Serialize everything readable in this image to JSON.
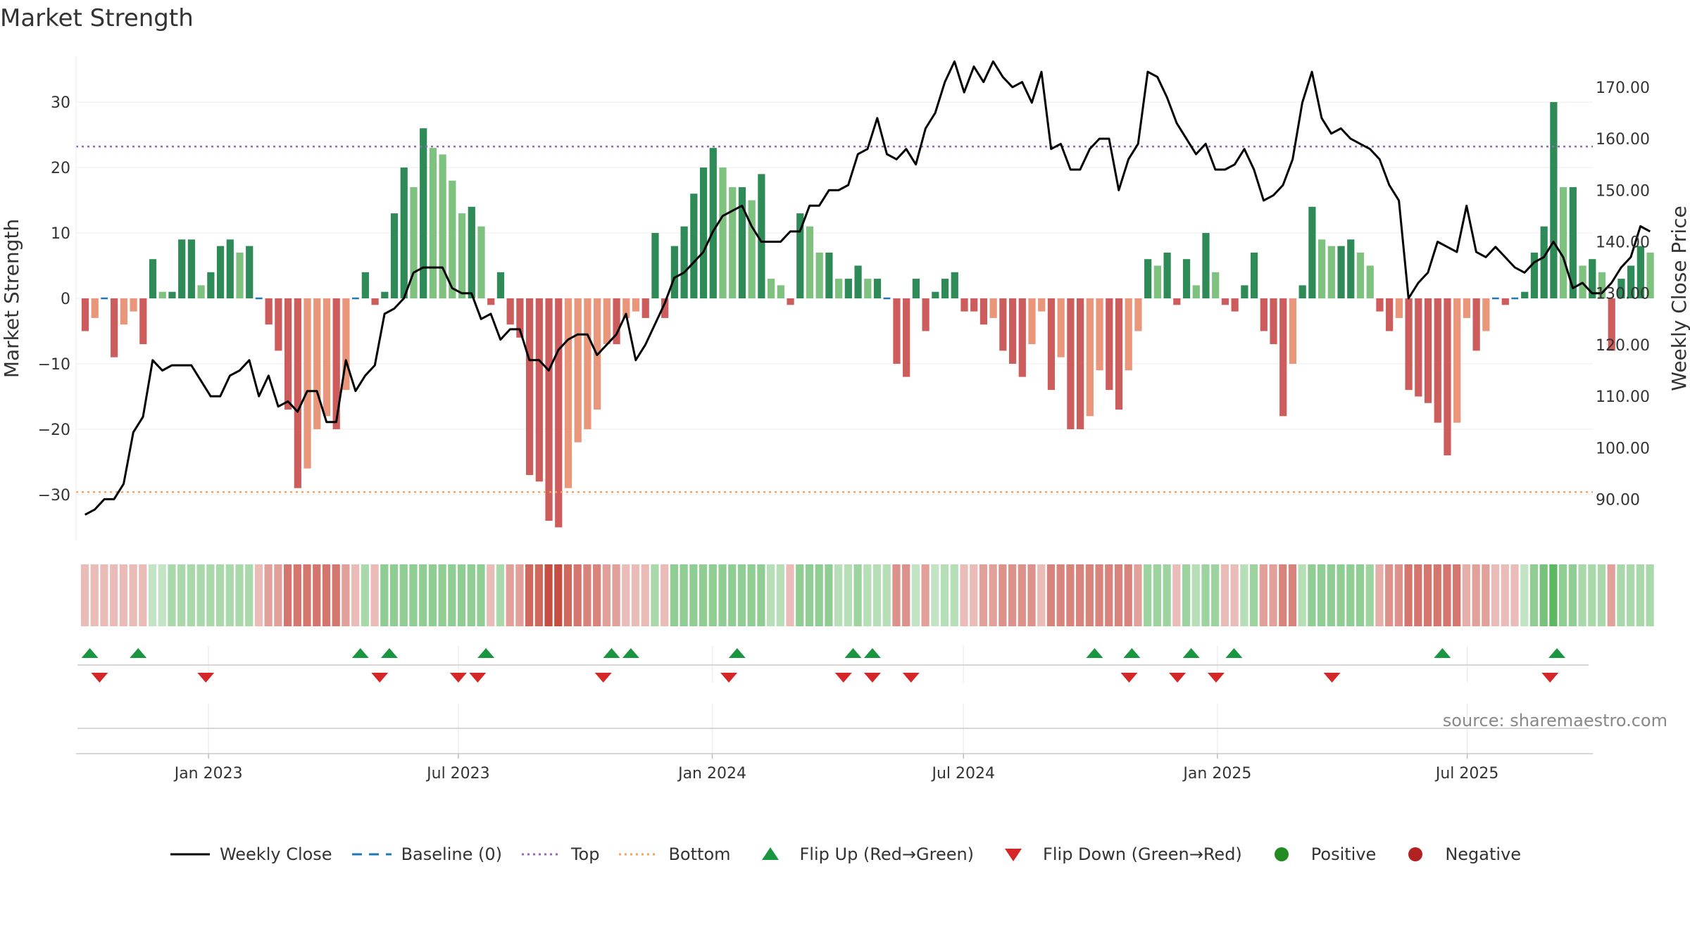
{
  "title": "Market Strength",
  "source": "source: sharemaestro.com",
  "legend": {
    "weekly_close": "Weekly Close",
    "baseline": "Baseline (0)",
    "top": "Top",
    "bottom": "Bottom",
    "flip_up": "Flip Up (Red→Green)",
    "flip_down": "Flip Down (Green→Red)",
    "positive": "Positive",
    "negative": "Negative"
  },
  "colors": {
    "green_dark": "#2e8b57",
    "green_light": "#7fc17f",
    "red_dark": "#cd5c5c",
    "red_light": "#e9967a",
    "top_line": "#9467bd",
    "bottom_line": "#f4a261",
    "baseline": "#1f77b4",
    "flip_up": "#1a9641",
    "flip_down": "#d62728",
    "positive": "#228b22",
    "negative": "#b22222"
  },
  "chart_data": {
    "type": "bar",
    "ylabel": "Market Strength",
    "y2label": "Weekly Close Price",
    "ylim": [
      -37,
      37
    ],
    "y2lim": [
      82,
      176
    ],
    "yticks": [
      -30,
      -20,
      -10,
      0,
      10,
      20,
      30
    ],
    "ytick_labels": [
      "−30",
      "−20",
      "−10",
      "0",
      "10",
      "20",
      "30"
    ],
    "y2ticks": [
      90,
      100,
      110,
      120,
      130,
      140,
      150,
      160,
      170
    ],
    "y2tick_labels": [
      "90.00",
      "100.00",
      "110.00",
      "120.00",
      "130.00",
      "140.00",
      "150.00",
      "160.00",
      "170.00"
    ],
    "top_level": 23.2,
    "bottom_level": -29.6,
    "x_range": [
      "2022-09-27",
      "2025-09-30"
    ],
    "xtick_dates": [
      "2023-01-01",
      "2023-07-01",
      "2024-01-01",
      "2024-07-01",
      "2025-01-01",
      "2025-07-01"
    ],
    "xtick_labels": [
      "Jan 2023",
      "Jul 2023",
      "Jan 2024",
      "Jul 2024",
      "Jan 2025",
      "Jul 2025"
    ],
    "start_date": "2022-09-30",
    "strength": [
      -5,
      -3,
      0,
      -9,
      -4,
      -2,
      -7,
      6,
      1,
      1,
      9,
      9,
      2,
      4,
      8,
      9,
      7,
      8,
      0,
      -4,
      -8,
      -17,
      -29,
      -26,
      -20,
      -18,
      -20,
      -14,
      0,
      4,
      -1,
      1,
      13,
      20,
      17,
      26,
      23,
      22,
      18,
      13,
      14,
      11,
      -1,
      4,
      -4,
      -6,
      -27,
      -28,
      -34,
      -35,
      -29,
      -22,
      -20,
      -17,
      -7,
      -7,
      -3,
      -2,
      -3,
      10,
      -3,
      8,
      11,
      16,
      20,
      23,
      20,
      17,
      17,
      15,
      19,
      3,
      2,
      -1,
      13,
      11,
      7,
      7,
      3,
      3,
      5,
      3,
      3,
      0,
      -10,
      -12,
      3,
      -5,
      1,
      3,
      4,
      -2,
      -2,
      -4,
      -3,
      -8,
      -10,
      -12,
      -7,
      -2,
      -14,
      -9,
      -20,
      -20,
      -18,
      -11,
      -14,
      -17,
      -11,
      -5,
      6,
      5,
      7,
      -1,
      6,
      2,
      10,
      4,
      -1,
      -2,
      2,
      7,
      -5,
      -7,
      -18,
      -10,
      2,
      14,
      9,
      8,
      8,
      9,
      7,
      5,
      -2,
      -5,
      -3,
      -14,
      -15,
      -16,
      -19,
      -24,
      -19,
      -3,
      -8,
      -5,
      0,
      -1,
      0,
      1,
      7,
      11,
      30,
      17,
      17,
      5,
      6,
      4,
      -8,
      3,
      5,
      8,
      7
    ],
    "close": [
      87,
      88,
      90,
      90,
      93,
      103,
      106,
      117,
      115,
      116,
      116,
      116,
      113,
      110,
      110,
      114,
      115,
      117,
      110,
      114,
      108,
      109,
      107,
      111,
      111,
      105,
      105,
      117,
      111,
      114,
      116,
      126,
      127,
      129,
      134,
      135,
      135,
      135,
      131,
      130,
      130,
      125,
      126,
      121,
      123,
      123,
      117,
      117,
      115,
      119,
      121,
      122,
      122,
      118,
      120,
      122,
      126,
      117,
      120,
      124,
      128,
      133,
      134,
      136,
      138,
      142,
      145,
      146,
      147,
      143,
      140,
      140,
      140,
      142,
      142,
      147,
      147,
      150,
      150,
      151,
      157,
      158,
      164,
      157,
      156,
      158,
      155,
      162,
      165,
      171,
      175,
      169,
      174,
      171,
      175,
      172,
      170,
      171,
      167,
      173,
      158,
      159,
      154,
      154,
      158,
      160,
      160,
      150,
      156,
      159,
      173,
      172,
      168,
      163,
      160,
      157,
      159,
      154,
      154,
      155,
      158,
      154,
      148,
      149,
      151,
      156,
      167,
      173,
      164,
      161,
      162,
      160,
      159,
      158,
      156,
      151,
      148,
      129,
      132,
      134,
      140,
      139,
      138,
      147,
      138,
      137,
      139,
      137,
      135,
      134,
      136,
      137,
      140,
      137,
      131,
      132,
      130,
      130,
      132,
      135,
      137,
      143,
      142
    ],
    "strip_intensity": [
      -0.2,
      -0.2,
      -0.2,
      -0.2,
      -0.2,
      -0.2,
      -0.2,
      0.2,
      0.2,
      0.4,
      0.4,
      0.4,
      0.4,
      0.4,
      0.4,
      0.4,
      0.4,
      0.4,
      -0.2,
      -0.4,
      -0.4,
      -0.7,
      -0.7,
      -0.7,
      -0.7,
      -0.7,
      -0.7,
      -0.4,
      -0.2,
      0.4,
      -0.2,
      0.6,
      0.6,
      0.6,
      0.6,
      0.6,
      0.6,
      0.6,
      0.6,
      0.6,
      0.6,
      0.6,
      -0.2,
      0.4,
      -0.4,
      -0.4,
      -0.8,
      -0.8,
      -1.0,
      -1.0,
      -0.8,
      -0.7,
      -0.6,
      -0.6,
      -0.4,
      -0.4,
      -0.2,
      -0.2,
      -0.2,
      0.4,
      -0.2,
      0.6,
      0.6,
      0.6,
      0.6,
      0.6,
      0.6,
      0.6,
      0.6,
      0.6,
      0.6,
      0.3,
      0.3,
      -0.2,
      0.6,
      0.6,
      0.6,
      0.6,
      0.3,
      0.3,
      0.5,
      0.3,
      0.3,
      0.3,
      -0.5,
      -0.5,
      0.2,
      -0.4,
      0.2,
      0.3,
      0.3,
      -0.2,
      -0.2,
      -0.4,
      -0.4,
      -0.5,
      -0.5,
      -0.5,
      -0.5,
      -0.2,
      -0.6,
      -0.6,
      -0.6,
      -0.6,
      -0.6,
      -0.6,
      -0.6,
      -0.6,
      -0.6,
      -0.4,
      0.5,
      0.5,
      0.5,
      -0.2,
      0.5,
      0.3,
      0.5,
      0.5,
      -0.2,
      -0.2,
      0.3,
      0.5,
      -0.4,
      -0.4,
      -0.6,
      -0.6,
      0.3,
      0.6,
      0.6,
      0.6,
      0.6,
      0.6,
      0.6,
      0.5,
      -0.3,
      -0.5,
      -0.5,
      -0.7,
      -0.7,
      -0.7,
      -0.7,
      -0.7,
      -0.7,
      -0.3,
      -0.4,
      -0.4,
      -0.2,
      -0.2,
      -0.2,
      0.2,
      0.6,
      0.8,
      1.0,
      0.6,
      0.6,
      0.4,
      0.4,
      0.4,
      -0.4,
      0.4,
      0.4,
      0.4,
      0.4
    ],
    "flip_up_dates": [
      "2022-10-07",
      "2022-11-11",
      "2023-04-21",
      "2023-05-12",
      "2023-07-21",
      "2023-10-20",
      "2023-11-03",
      "2024-01-19",
      "2024-04-12",
      "2024-04-26",
      "2024-10-04",
      "2024-10-31",
      "2024-12-13",
      "2025-01-13",
      "2025-06-13",
      "2025-09-04"
    ],
    "flip_down_dates": [
      "2022-10-14",
      "2022-12-30",
      "2023-05-05",
      "2023-07-01",
      "2023-07-15",
      "2023-10-14",
      "2024-01-13",
      "2024-04-05",
      "2024-04-26",
      "2024-05-24",
      "2024-10-29",
      "2024-12-03",
      "2024-12-31",
      "2025-03-25",
      "2025-08-30"
    ]
  }
}
